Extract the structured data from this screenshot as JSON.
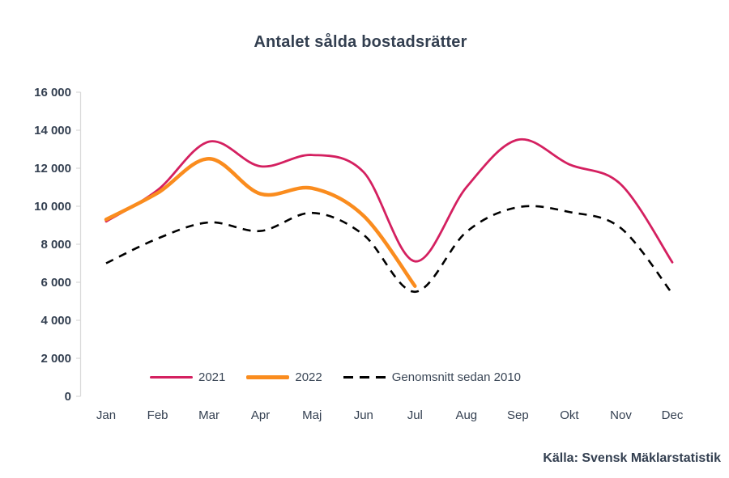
{
  "title": "Antalet sålda bostadsrätter",
  "source": "Källa: Svensk Mäklarstatistik",
  "colors": {
    "accent_2021": "#D42060",
    "accent_2022": "#FA8C1E",
    "accent_avg": "#000000",
    "text": "#333F50",
    "axis_line": "#D9D9D9",
    "background": "#FFFFFF"
  },
  "chart_data": {
    "type": "line",
    "title": "Antalet sålda bostadsrätter",
    "xlabel": "",
    "ylabel": "",
    "categories": [
      "Jan",
      "Feb",
      "Mar",
      "Apr",
      "Maj",
      "Jun",
      "Jul",
      "Aug",
      "Sep",
      "Okt",
      "Nov",
      "Dec"
    ],
    "series": [
      {
        "name": "2021",
        "color": "#D42060",
        "style": "solid",
        "width": 2.8,
        "values": [
          9200,
          10850,
          13400,
          12100,
          12700,
          11800,
          7100,
          11000,
          13500,
          12200,
          11150,
          7050
        ]
      },
      {
        "name": "2022",
        "color": "#FA8C1E",
        "style": "solid",
        "width": 4.5,
        "values": [
          9300,
          10700,
          12500,
          10650,
          10950,
          9500,
          5800
        ]
      },
      {
        "name": "Genomsnitt sedan 2010",
        "color": "#000000",
        "style": "dashed",
        "width": 2.6,
        "values": [
          7000,
          8300,
          9150,
          8700,
          9650,
          8500,
          5500,
          8650,
          9950,
          9700,
          8850,
          5400
        ]
      }
    ],
    "ylim": [
      0,
      16000
    ],
    "ytick_step": 2000,
    "ytick_labels": [
      "0",
      "2 000",
      "4 000",
      "6 000",
      "8 000",
      "10 000",
      "12 000",
      "14 000",
      "16 000"
    ],
    "grid": false,
    "legend_position": "bottom"
  }
}
